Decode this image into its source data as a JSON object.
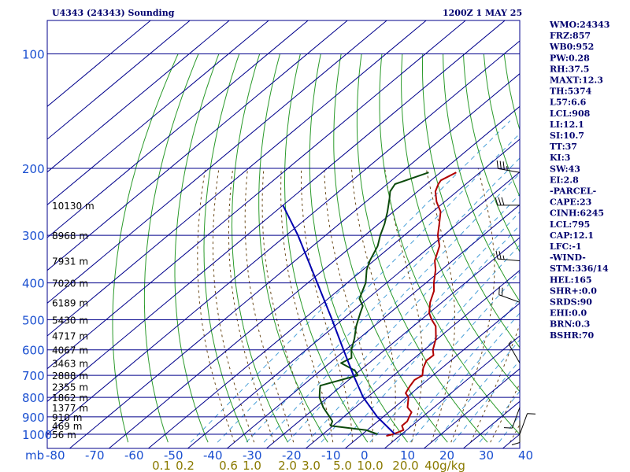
{
  "header": {
    "station": "U4343 (24343) Sounding",
    "time": "1200Z  1 MAY 25"
  },
  "indices": [
    "WMO:24343",
    "FRZ:857",
    "WB0:952",
    "PW:0.28",
    "RH:37.5",
    "MAXT:12.3",
    "TH:5374",
    "L57:6.6",
    "LCL:908",
    "LI:12.1",
    "SI:10.7",
    "TT:37",
    "KI:3",
    "SW:43",
    "EI:2.8",
    "-PARCEL-",
    "CAPE:23",
    "CINH:6245",
    "LCL:795",
    "CAP:12.1",
    "LFC:-1",
    "-WIND-",
    "STM:336/14",
    "HEL:165",
    "SHR+:0.0",
    "SRDS:90",
    "EHI:0.0",
    "BRN:0.3",
    "BSHR:70"
  ],
  "colors": {
    "frame": "#00008b",
    "dry_adiabat": "#2a9a2a",
    "moist_adiabat": "#6b4a1a",
    "mixing_ratio": "#4aa0d8",
    "temperature": "#b00000",
    "dewpoint": "#0b4a0b",
    "parcel": "#0000b0",
    "header_text": "#00006e",
    "ratio_text": "#8a7a00",
    "axis_text": "#1a4fd0"
  },
  "chart_data": {
    "type": "line",
    "title": "U4343 (24343) Sounding",
    "subtitle": "1200Z  1 MAY 25",
    "x_axis": {
      "unit": "mb",
      "ticks": [
        -80,
        -70,
        -60,
        -50,
        -40,
        -30,
        -20,
        -10,
        0,
        10,
        20,
        30,
        40
      ],
      "range": [
        -80,
        40
      ]
    },
    "y_axis": {
      "scale": "log",
      "ticks": [
        100,
        200,
        300,
        400,
        500,
        600,
        700,
        800,
        900,
        1000
      ],
      "range": [
        100,
        1050
      ]
    },
    "height_labels": [
      {
        "p": 250,
        "label": "10130 m"
      },
      {
        "p": 300,
        "label": "8968 m"
      },
      {
        "p": 350,
        "label": "7931 m"
      },
      {
        "p": 400,
        "label": "7020 m"
      },
      {
        "p": 450,
        "label": "6189 m"
      },
      {
        "p": 500,
        "label": "5430 m"
      },
      {
        "p": 550,
        "label": "4717 m"
      },
      {
        "p": 600,
        "label": "4067 m"
      },
      {
        "p": 650,
        "label": "3463 m"
      },
      {
        "p": 700,
        "label": "2888 m"
      },
      {
        "p": 750,
        "label": "2355 m"
      },
      {
        "p": 800,
        "label": "1862 m"
      },
      {
        "p": 850,
        "label": "1377 m"
      },
      {
        "p": 900,
        "label": "910 m"
      },
      {
        "p": 950,
        "label": "469 m"
      },
      {
        "p": 1000,
        "label": "56 m"
      }
    ],
    "mixing_ratio_labels": [
      {
        "t": -51,
        "label": "0.1"
      },
      {
        "t": -45,
        "label": "0.2"
      },
      {
        "t": -34,
        "label": "0.6"
      },
      {
        "t": -28,
        "label": "1.0"
      },
      {
        "t": -19,
        "label": "2.0"
      },
      {
        "t": -13,
        "label": "3.0"
      },
      {
        "t": -5,
        "label": "5.0"
      },
      {
        "t": 2,
        "label": "10.0"
      },
      {
        "t": 11,
        "label": "20.0"
      },
      {
        "t": 21,
        "label": "40g/kg"
      }
    ],
    "series": [
      {
        "key": "temperature",
        "points": [
          {
            "p": 1010,
            "t": 6.6
          },
          {
            "p": 1000,
            "t": 7.8
          },
          {
            "p": 975,
            "t": 9.2
          },
          {
            "p": 950,
            "t": 7.5
          },
          {
            "p": 925,
            "t": 7.5
          },
          {
            "p": 900,
            "t": 6.6
          },
          {
            "p": 875,
            "t": 5.8
          },
          {
            "p": 850,
            "t": 3.3
          },
          {
            "p": 800,
            "t": 0.5
          },
          {
            "p": 780,
            "t": -1.5
          },
          {
            "p": 750,
            "t": -2.5
          },
          {
            "p": 720,
            "t": -3.3
          },
          {
            "p": 700,
            "t": -2.7
          },
          {
            "p": 670,
            "t": -4.7
          },
          {
            "p": 640,
            "t": -6.2
          },
          {
            "p": 620,
            "t": -6.0
          },
          {
            "p": 600,
            "t": -7.8
          },
          {
            "p": 560,
            "t": -10.5
          },
          {
            "p": 520,
            "t": -14.3
          },
          {
            "p": 500,
            "t": -17.3
          },
          {
            "p": 480,
            "t": -20.0
          },
          {
            "p": 450,
            "t": -23.0
          },
          {
            "p": 420,
            "t": -25.5
          },
          {
            "p": 400,
            "t": -28.0
          },
          {
            "p": 370,
            "t": -31.5
          },
          {
            "p": 350,
            "t": -34.5
          },
          {
            "p": 320,
            "t": -37.8
          },
          {
            "p": 300,
            "t": -41.5
          },
          {
            "p": 280,
            "t": -44.6
          },
          {
            "p": 260,
            "t": -48.0
          },
          {
            "p": 245,
            "t": -52.0
          },
          {
            "p": 230,
            "t": -55.5
          },
          {
            "p": 220,
            "t": -57.0
          },
          {
            "p": 215,
            "t": -57.5
          },
          {
            "p": 205,
            "t": -56.0
          }
        ]
      },
      {
        "key": "dewpoint",
        "points": [
          {
            "p": 1000,
            "t": 3.9
          },
          {
            "p": 975,
            "t": -0.3
          },
          {
            "p": 950,
            "t": -10.6
          },
          {
            "p": 925,
            "t": -11.5
          },
          {
            "p": 900,
            "t": -13.6
          },
          {
            "p": 850,
            "t": -18.1
          },
          {
            "p": 800,
            "t": -22.1
          },
          {
            "p": 760,
            "t": -24.6
          },
          {
            "p": 745,
            "t": -25.5
          },
          {
            "p": 700,
            "t": -19.1
          },
          {
            "p": 680,
            "t": -21.3
          },
          {
            "p": 650,
            "t": -27.1
          },
          {
            "p": 630,
            "t": -26.0
          },
          {
            "p": 600,
            "t": -28.5
          },
          {
            "p": 560,
            "t": -31.2
          },
          {
            "p": 520,
            "t": -34.5
          },
          {
            "p": 480,
            "t": -37.5
          },
          {
            "p": 460,
            "t": -39.0
          },
          {
            "p": 440,
            "t": -42.1
          },
          {
            "p": 400,
            "t": -45.3
          },
          {
            "p": 370,
            "t": -49.0
          },
          {
            "p": 350,
            "t": -51.0
          },
          {
            "p": 320,
            "t": -53.5
          },
          {
            "p": 300,
            "t": -56.1
          },
          {
            "p": 280,
            "t": -58.5
          },
          {
            "p": 260,
            "t": -61.5
          },
          {
            "p": 240,
            "t": -65.0
          },
          {
            "p": 230,
            "t": -67.0
          },
          {
            "p": 220,
            "t": -68.0
          },
          {
            "p": 205,
            "t": -63.0
          }
        ]
      },
      {
        "key": "parcel",
        "points": [
          {
            "p": 1000,
            "t": 8.3
          },
          {
            "p": 900,
            "t": -1.5
          },
          {
            "p": 800,
            "t": -11.0
          },
          {
            "p": 700,
            "t": -20.2
          },
          {
            "p": 600,
            "t": -30.5
          },
          {
            "p": 500,
            "t": -42.6
          },
          {
            "p": 400,
            "t": -57.6
          },
          {
            "p": 300,
            "t": -77.0
          },
          {
            "p": 250,
            "t": -90.0
          }
        ]
      }
    ],
    "wind_barbs": [
      {
        "p": 205,
        "dir": 280,
        "kt": 35
      },
      {
        "p": 250,
        "dir": 270,
        "kt": 30
      },
      {
        "p": 350,
        "dir": 275,
        "kt": 25
      },
      {
        "p": 450,
        "dir": 290,
        "kt": 20
      },
      {
        "p": 650,
        "dir": 330,
        "kt": 5
      },
      {
        "p": 850,
        "dir": 200,
        "kt": 10
      },
      {
        "p": 920,
        "dir": 180,
        "kt": 10
      },
      {
        "p": 1000,
        "dir": 20,
        "kt": 10
      }
    ],
    "grid": true
  }
}
